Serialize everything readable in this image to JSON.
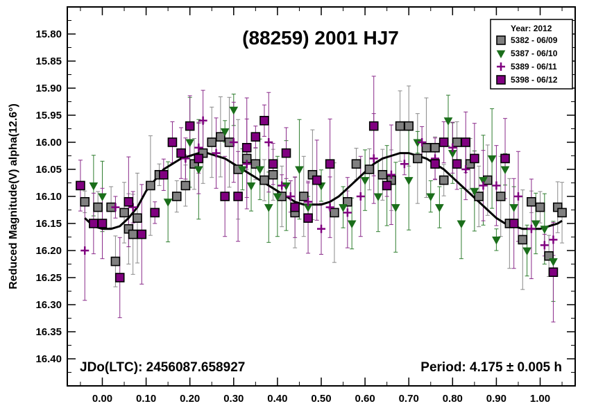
{
  "chart_data": {
    "type": "scatter",
    "title": "(88259) 2001 HJ7",
    "xlabel": "",
    "ylabel": "Reduced Magnitude(V) alpha(12.6°)",
    "xlim": [
      -0.08,
      1.08
    ],
    "ylim": [
      15.75,
      16.45
    ],
    "y_inverted": true,
    "x_ticks": [
      "0.00",
      "0.10",
      "0.20",
      "0.30",
      "0.40",
      "0.50",
      "0.60",
      "0.70",
      "0.80",
      "0.90",
      "1.00"
    ],
    "y_ticks": [
      "15.80",
      "15.85",
      "15.90",
      "15.95",
      "16.00",
      "16.05",
      "16.10",
      "16.15",
      "16.20",
      "16.25",
      "16.30",
      "16.35",
      "16.40"
    ],
    "annotation_left": "JDo(LTC): 2456087.658927",
    "annotation_right": "Period: 4.175 ± 0.005 h",
    "legend": {
      "title": "Year: 2012",
      "position": "top-right",
      "entries": [
        "5382 - 06/09",
        "5387 - 06/10",
        "5389 - 06/11",
        "5398 - 06/12"
      ]
    },
    "series": [
      {
        "name": "5382 - 06/09",
        "marker": "square",
        "color": "#808080",
        "points": [
          [
            -0.04,
            16.11
          ],
          [
            -0.01,
            16.12
          ],
          [
            0.02,
            16.12
          ],
          [
            0.03,
            16.22
          ],
          [
            0.05,
            16.13
          ],
          [
            0.06,
            16.16
          ],
          [
            0.07,
            16.17
          ],
          [
            0.08,
            16.14
          ],
          [
            0.11,
            16.08
          ],
          [
            0.13,
            16.06
          ],
          [
            0.17,
            16.1
          ],
          [
            0.19,
            16.08
          ],
          [
            0.21,
            16.04
          ],
          [
            0.23,
            16.02
          ],
          [
            0.25,
            16.0
          ],
          [
            0.27,
            15.99
          ],
          [
            0.29,
            16.0
          ],
          [
            0.31,
            16.05
          ],
          [
            0.33,
            16.03
          ],
          [
            0.35,
            16.04
          ],
          [
            0.37,
            16.07
          ],
          [
            0.39,
            16.06
          ],
          [
            0.41,
            16.1
          ],
          [
            0.44,
            16.13
          ],
          [
            0.46,
            16.1
          ],
          [
            0.48,
            16.06
          ],
          [
            0.53,
            16.13
          ],
          [
            0.56,
            16.11
          ],
          [
            0.58,
            16.04
          ],
          [
            0.61,
            16.05
          ],
          [
            0.64,
            16.06
          ],
          [
            0.66,
            16.07
          ],
          [
            0.68,
            15.97
          ],
          [
            0.7,
            15.97
          ],
          [
            0.72,
            16.03
          ],
          [
            0.74,
            16.01
          ],
          [
            0.76,
            16.01
          ],
          [
            0.78,
            16.07
          ],
          [
            0.81,
            16.0
          ],
          [
            0.84,
            16.04
          ],
          [
            0.86,
            16.1
          ],
          [
            0.88,
            16.07
          ],
          [
            0.91,
            16.1
          ],
          [
            0.93,
            16.15
          ],
          [
            0.96,
            16.18
          ],
          [
            0.98,
            16.11
          ],
          [
            1.0,
            16.12
          ],
          [
            1.02,
            16.21
          ],
          [
            1.04,
            16.12
          ],
          [
            1.05,
            16.13
          ]
        ]
      },
      {
        "name": "5387 - 06/10",
        "marker": "triangle-down",
        "color": "#1a6e1a",
        "points": [
          [
            -0.02,
            16.08
          ],
          [
            0.0,
            16.1
          ],
          [
            0.15,
            16.11
          ],
          [
            0.2,
            16.0
          ],
          [
            0.22,
            16.05
          ],
          [
            0.28,
            15.98
          ],
          [
            0.3,
            15.94
          ],
          [
            0.32,
            16.05
          ],
          [
            0.34,
            16.08
          ],
          [
            0.36,
            16.05
          ],
          [
            0.38,
            16.12
          ],
          [
            0.4,
            16.1
          ],
          [
            0.42,
            16.08
          ],
          [
            0.45,
            16.05
          ],
          [
            0.47,
            16.12
          ],
          [
            0.5,
            16.08
          ],
          [
            0.55,
            16.12
          ],
          [
            0.57,
            16.15
          ],
          [
            0.6,
            16.07
          ],
          [
            0.63,
            16.1
          ],
          [
            0.65,
            16.08
          ],
          [
            0.67,
            16.12
          ],
          [
            0.7,
            16.07
          ],
          [
            0.72,
            16.0
          ],
          [
            0.75,
            16.1
          ],
          [
            0.77,
            16.12
          ],
          [
            0.79,
            15.96
          ],
          [
            0.8,
            16.02
          ],
          [
            0.82,
            16.15
          ],
          [
            0.85,
            16.09
          ],
          [
            0.87,
            16.07
          ],
          [
            0.89,
            16.03
          ],
          [
            0.9,
            16.18
          ],
          [
            0.92,
            16.05
          ],
          [
            0.94,
            16.12
          ],
          [
            0.97,
            16.2
          ],
          [
            0.99,
            16.15
          ],
          [
            1.01,
            16.16
          ],
          [
            1.03,
            16.22
          ]
        ]
      },
      {
        "name": "5389 - 06/11",
        "marker": "plus",
        "color": "#800080",
        "points": [
          [
            -0.04,
            16.2
          ],
          [
            0.03,
            16.12
          ],
          [
            0.07,
            16.12
          ],
          [
            0.19,
            16.03
          ],
          [
            0.22,
            16.01
          ],
          [
            0.23,
            15.96
          ],
          [
            0.26,
            16.02
          ],
          [
            0.3,
            16.0
          ],
          [
            0.33,
            16.04
          ],
          [
            0.38,
            16.0
          ],
          [
            0.41,
            16.08
          ],
          [
            0.43,
            16.1
          ],
          [
            0.47,
            16.11
          ],
          [
            0.5,
            16.16
          ],
          [
            0.52,
            16.12
          ],
          [
            0.56,
            16.13
          ],
          [
            0.59,
            16.1
          ],
          [
            0.62,
            16.03
          ],
          [
            0.66,
            16.06
          ],
          [
            0.69,
            16.04
          ],
          [
            0.73,
            16.0
          ],
          [
            0.76,
            16.03
          ],
          [
            0.8,
            16.01
          ],
          [
            0.83,
            16.05
          ],
          [
            0.87,
            16.08
          ],
          [
            0.9,
            16.08
          ],
          [
            0.95,
            16.1
          ],
          [
            0.98,
            16.16
          ],
          [
            1.01,
            16.19
          ],
          [
            1.03,
            16.18
          ]
        ]
      },
      {
        "name": "5398 - 06/12",
        "marker": "square",
        "color": "#800080",
        "points": [
          [
            -0.05,
            16.08
          ],
          [
            -0.02,
            16.15
          ],
          [
            0.0,
            16.15
          ],
          [
            0.04,
            16.25
          ],
          [
            0.06,
            16.11
          ],
          [
            0.09,
            16.17
          ],
          [
            0.12,
            16.13
          ],
          [
            0.14,
            16.06
          ],
          [
            0.16,
            16.0
          ],
          [
            0.18,
            16.02
          ],
          [
            0.2,
            15.97
          ],
          [
            0.22,
            16.03
          ],
          [
            0.28,
            16.1
          ],
          [
            0.31,
            16.1
          ],
          [
            0.33,
            16.01
          ],
          [
            0.35,
            15.99
          ],
          [
            0.37,
            15.96
          ],
          [
            0.39,
            16.04
          ],
          [
            0.42,
            16.02
          ],
          [
            0.44,
            16.12
          ],
          [
            0.47,
            16.14
          ],
          [
            0.49,
            16.07
          ],
          [
            0.52,
            16.04
          ],
          [
            0.62,
            15.97
          ],
          [
            0.65,
            16.08
          ],
          [
            0.76,
            16.04
          ],
          [
            0.78,
            16.0
          ],
          [
            0.81,
            16.04
          ],
          [
            0.83,
            16.0
          ],
          [
            0.85,
            16.03
          ],
          [
            0.92,
            16.03
          ],
          [
            0.94,
            16.15
          ],
          [
            1.03,
            16.24
          ]
        ]
      }
    ],
    "fit_curve": [
      [
        -0.04,
        16.14
      ],
      [
        -0.02,
        16.155
      ],
      [
        0.0,
        16.16
      ],
      [
        0.02,
        16.16
      ],
      [
        0.04,
        16.155
      ],
      [
        0.06,
        16.14
      ],
      [
        0.08,
        16.12
      ],
      [
        0.1,
        16.09
      ],
      [
        0.12,
        16.07
      ],
      [
        0.14,
        16.05
      ],
      [
        0.16,
        16.04
      ],
      [
        0.18,
        16.03
      ],
      [
        0.2,
        16.025
      ],
      [
        0.22,
        16.02
      ],
      [
        0.24,
        16.02
      ],
      [
        0.26,
        16.025
      ],
      [
        0.28,
        16.03
      ],
      [
        0.3,
        16.04
      ],
      [
        0.32,
        16.05
      ],
      [
        0.34,
        16.06
      ],
      [
        0.36,
        16.07
      ],
      [
        0.38,
        16.08
      ],
      [
        0.4,
        16.09
      ],
      [
        0.42,
        16.1
      ],
      [
        0.44,
        16.11
      ],
      [
        0.46,
        16.115
      ],
      [
        0.48,
        16.115
      ],
      [
        0.5,
        16.115
      ],
      [
        0.52,
        16.11
      ],
      [
        0.54,
        16.1
      ],
      [
        0.56,
        16.085
      ],
      [
        0.58,
        16.07
      ],
      [
        0.6,
        16.055
      ],
      [
        0.62,
        16.04
      ],
      [
        0.64,
        16.03
      ],
      [
        0.66,
        16.025
      ],
      [
        0.68,
        16.02
      ],
      [
        0.7,
        16.02
      ],
      [
        0.72,
        16.025
      ],
      [
        0.74,
        16.03
      ],
      [
        0.76,
        16.04
      ],
      [
        0.78,
        16.05
      ],
      [
        0.8,
        16.065
      ],
      [
        0.82,
        16.08
      ],
      [
        0.84,
        16.095
      ],
      [
        0.86,
        16.11
      ],
      [
        0.88,
        16.125
      ],
      [
        0.9,
        16.14
      ],
      [
        0.92,
        16.15
      ],
      [
        0.94,
        16.155
      ],
      [
        0.96,
        16.16
      ],
      [
        0.98,
        16.16
      ],
      [
        1.0,
        16.16
      ],
      [
        1.02,
        16.155
      ],
      [
        1.04,
        16.15
      ],
      [
        1.05,
        16.145
      ]
    ]
  }
}
